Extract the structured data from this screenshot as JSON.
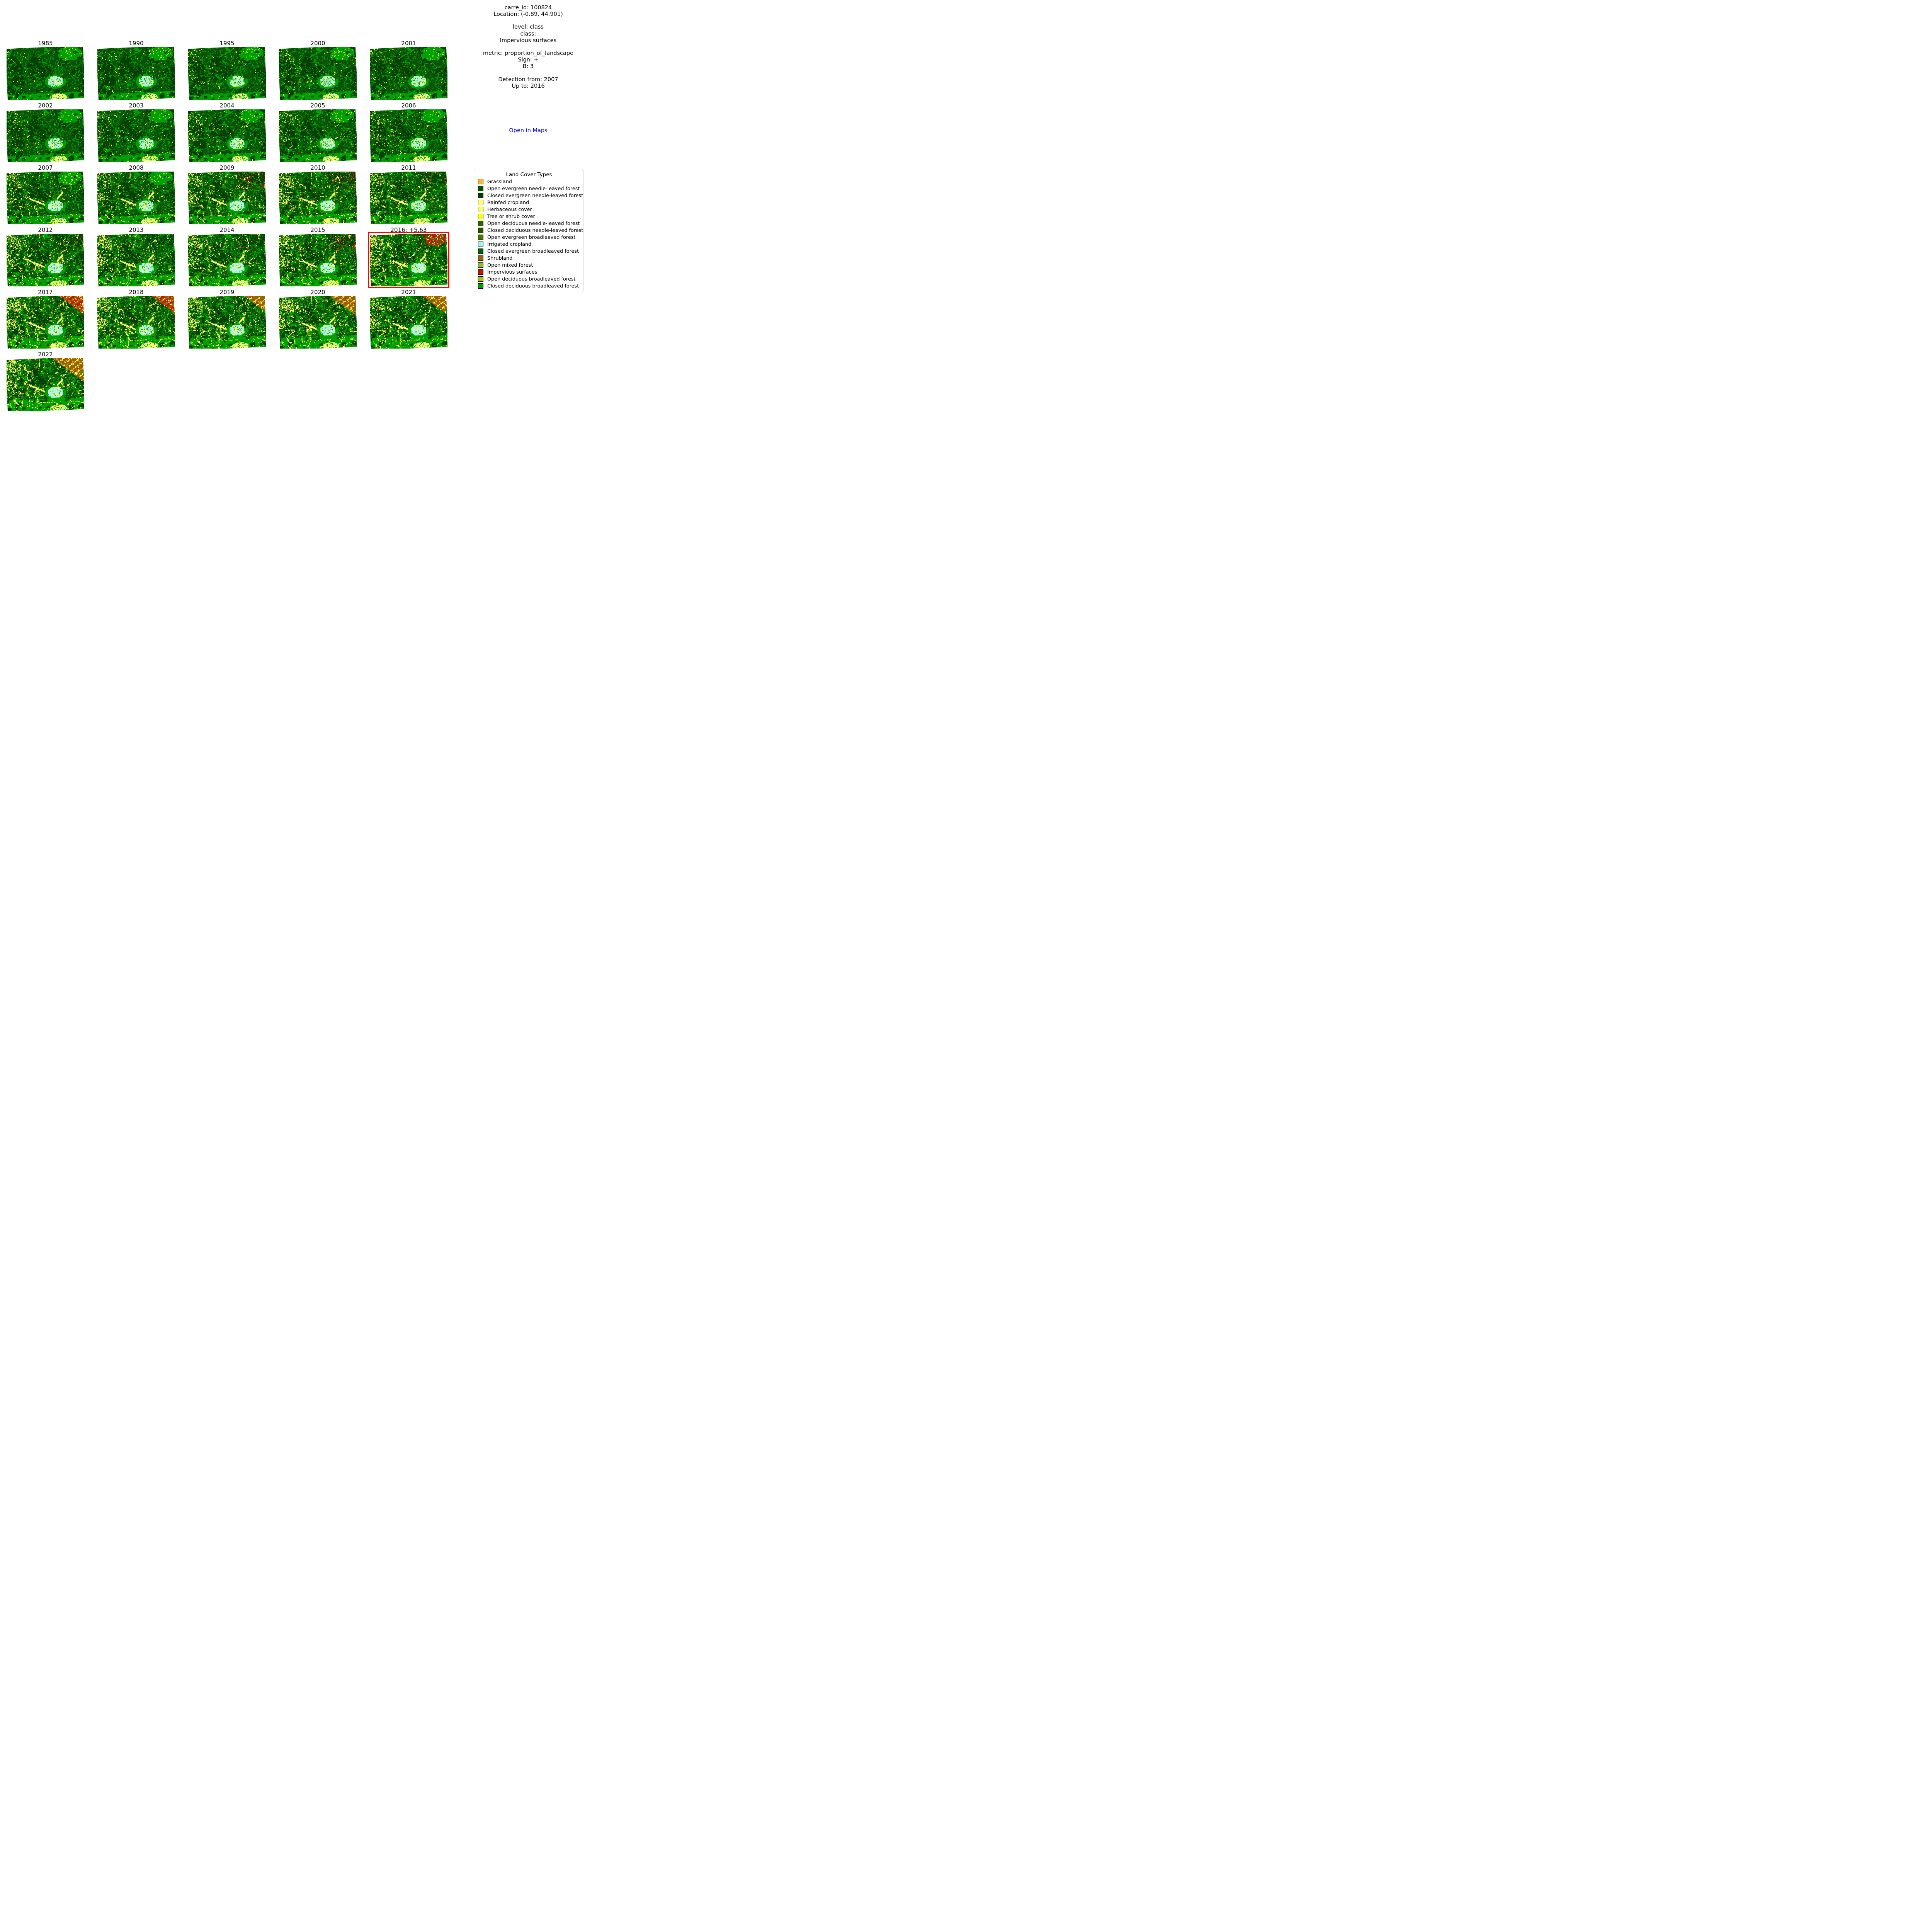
{
  "info_panel": {
    "blocks": [
      "carre_id: 100824\nLocation: (-0.89, 44.901)",
      "level: class\nclass:\nImpervious surfaces",
      "metric: proportion_of_landscape\nSign: +\nB: 3",
      "Detection from: 2007\nUp to: 2016"
    ],
    "link_label": "Open in Maps",
    "link_color": "#0000ee"
  },
  "legend": {
    "title": "Land Cover Types",
    "items": [
      {
        "label": "Grassland",
        "color": "#ffb432"
      },
      {
        "label": "Open evergreen needle-leaved forest",
        "color": "#005000"
      },
      {
        "label": "Closed evergreen needle-leaved forest",
        "color": "#003c00"
      },
      {
        "label": "Rainfed cropland",
        "color": "#ffff64"
      },
      {
        "label": "Herbaceous cover",
        "color": "#ffff64"
      },
      {
        "label": "Tree or shrub cover",
        "color": "#ffff00"
      },
      {
        "label": "Open deciduous needle-leaved forest",
        "color": "#286400"
      },
      {
        "label": "Closed deciduous needle-leaved forest",
        "color": "#285000"
      },
      {
        "label": "Open evergreen broadleaved forest",
        "color": "#4c7300"
      },
      {
        "label": "Irrigated cropland",
        "color": "#aaf0f0"
      },
      {
        "label": "Closed evergreen broadleaved forest",
        "color": "#006400"
      },
      {
        "label": "Shrubland",
        "color": "#966400"
      },
      {
        "label": "Open mixed forest",
        "color": "#a0b432"
      },
      {
        "label": "Impervious surfaces",
        "color": "#c31400"
      },
      {
        "label": "Open deciduous broadleaved forest",
        "color": "#a8c800"
      },
      {
        "label": "Closed deciduous broadleaved forest",
        "color": "#00a000"
      }
    ]
  },
  "highlight": {
    "year": "2016",
    "value": "+5.63",
    "border_color": "#ff0000"
  },
  "map_palette": {
    "closed_needle": "#053f05",
    "open_needle": "#0a510a",
    "bright_green": "#00a000",
    "pale_yellow": "#ffff69",
    "yellow": "#f5f500",
    "cyan": "#aaf0f0",
    "red": "#c31400",
    "brown": "#966400",
    "olive": "#4c7300",
    "chartreuse": "#a8c800"
  },
  "map_grid": {
    "columns": 5,
    "tiles": [
      {
        "label": "1985",
        "g": 0.32,
        "y": 0.05,
        "c": 0.6,
        "m": "none",
        "bx": 0,
        "hl": false
      },
      {
        "label": "1990",
        "g": 0.36,
        "y": 0.06,
        "c": 0.55,
        "m": "none",
        "bx": 0,
        "hl": false
      },
      {
        "label": "1995",
        "g": 0.34,
        "y": 0.08,
        "c": 0.5,
        "m": "none",
        "bx": 0,
        "hl": false
      },
      {
        "label": "2000",
        "g": 0.36,
        "y": 0.09,
        "c": 0.55,
        "m": "none",
        "bx": 0,
        "hl": false
      },
      {
        "label": "2001",
        "g": 0.35,
        "y": 0.09,
        "c": 0.5,
        "m": "none",
        "bx": 0,
        "hl": false
      },
      {
        "label": "2002",
        "g": 0.35,
        "y": 0.1,
        "c": 0.5,
        "m": "none",
        "bx": 0,
        "hl": false
      },
      {
        "label": "2003",
        "g": 0.37,
        "y": 0.12,
        "c": 0.5,
        "m": "none",
        "bx": 0,
        "hl": false
      },
      {
        "label": "2004",
        "g": 0.39,
        "y": 0.14,
        "c": 0.55,
        "m": "none",
        "bx": 0,
        "hl": false
      },
      {
        "label": "2005",
        "g": 0.39,
        "y": 0.14,
        "c": 0.55,
        "m": "none",
        "bx": 0,
        "hl": false
      },
      {
        "label": "2006",
        "g": 0.41,
        "y": 0.16,
        "c": 0.55,
        "m": "none",
        "bx": 0,
        "hl": false
      },
      {
        "label": "2007",
        "g": 0.44,
        "y": 0.24,
        "c": 0.6,
        "m": "none",
        "bx": 0,
        "hl": false
      },
      {
        "label": "2008",
        "g": 0.44,
        "y": 0.26,
        "c": 0.6,
        "m": "none",
        "bx": 0,
        "hl": false
      },
      {
        "label": "2009",
        "g": 0.47,
        "y": 0.32,
        "c": 0.62,
        "m": "rs",
        "bx": 0,
        "hl": false
      },
      {
        "label": "2010",
        "g": 0.47,
        "y": 0.36,
        "c": 0.64,
        "m": "rs",
        "bx": 0,
        "hl": false
      },
      {
        "label": "2011",
        "g": 0.49,
        "y": 0.34,
        "c": 0.62,
        "m": "rl",
        "bx": 0,
        "hl": false
      },
      {
        "label": "2012",
        "g": 0.5,
        "y": 0.38,
        "c": 0.62,
        "m": "rl",
        "bx": 0,
        "hl": false
      },
      {
        "label": "2013",
        "g": 0.51,
        "y": 0.4,
        "c": 0.64,
        "m": "none",
        "bx": 0,
        "hl": false
      },
      {
        "label": "2014",
        "g": 0.51,
        "y": 0.38,
        "c": 0.64,
        "m": "rl",
        "bx": 0,
        "hl": false
      },
      {
        "label": "2015",
        "g": 0.53,
        "y": 0.4,
        "c": 0.64,
        "m": "rs",
        "bx": 0,
        "hl": false
      },
      {
        "label": "2016: +5.63",
        "g": 0.53,
        "y": 0.46,
        "c": 0.66,
        "m": "blob",
        "bx": 0,
        "hl": true
      },
      {
        "label": "2017",
        "g": 0.56,
        "y": 0.48,
        "c": 0.66,
        "m": "bandr",
        "bx": 68,
        "hl": false
      },
      {
        "label": "2018",
        "g": 0.56,
        "y": 0.44,
        "c": 0.66,
        "m": "bandr",
        "bx": 70,
        "hl": false
      },
      {
        "label": "2019",
        "g": 0.57,
        "y": 0.42,
        "c": 0.66,
        "m": "bandb",
        "bx": 72,
        "hl": false
      },
      {
        "label": "2020",
        "g": 0.58,
        "y": 0.44,
        "c": 0.68,
        "m": "bandb",
        "bx": 66,
        "hl": false
      },
      {
        "label": "2021",
        "g": 0.58,
        "y": 0.4,
        "c": 0.66,
        "m": "bandb",
        "bx": 68,
        "hl": false
      },
      {
        "label": "2022",
        "g": 0.58,
        "y": 0.42,
        "c": 0.68,
        "m": "bandb",
        "bx": 60,
        "hl": false
      }
    ]
  }
}
